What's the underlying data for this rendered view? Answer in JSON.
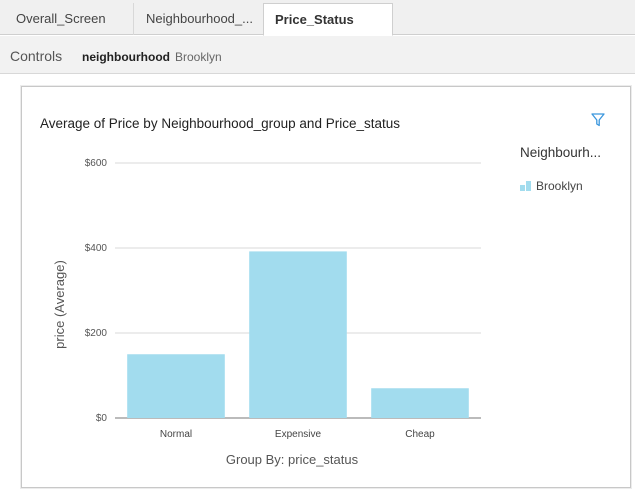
{
  "tabs": [
    {
      "label": "Overall_Screen"
    },
    {
      "label": "Neighbourhood_..."
    },
    {
      "label": "Price_Status"
    }
  ],
  "controls": {
    "label": "Controls",
    "filter_name": "neighbourhood",
    "filter_value": "Brooklyn"
  },
  "legend": {
    "title": "Neighbourh...",
    "items": [
      {
        "label": "Brooklyn",
        "color": "#a2dcee"
      }
    ]
  },
  "icons": {
    "filter": "filter-icon"
  },
  "colors": {
    "bar": "#a2dcee",
    "accent": "#3a96dd"
  },
  "chart_data": {
    "type": "bar",
    "title": "Average of Price by Neighbourhood_group and Price_status",
    "xlabel": "Group By: price_status",
    "ylabel": "price (Average)",
    "categories": [
      "Normal",
      "Expensive",
      "Cheap"
    ],
    "series": [
      {
        "name": "Brooklyn",
        "values": [
          150,
          392,
          70
        ]
      }
    ],
    "ylim": [
      0,
      600
    ],
    "yticks": [
      "$0",
      "$200",
      "$400",
      "$600"
    ],
    "grid": true,
    "legend_position": "right"
  }
}
